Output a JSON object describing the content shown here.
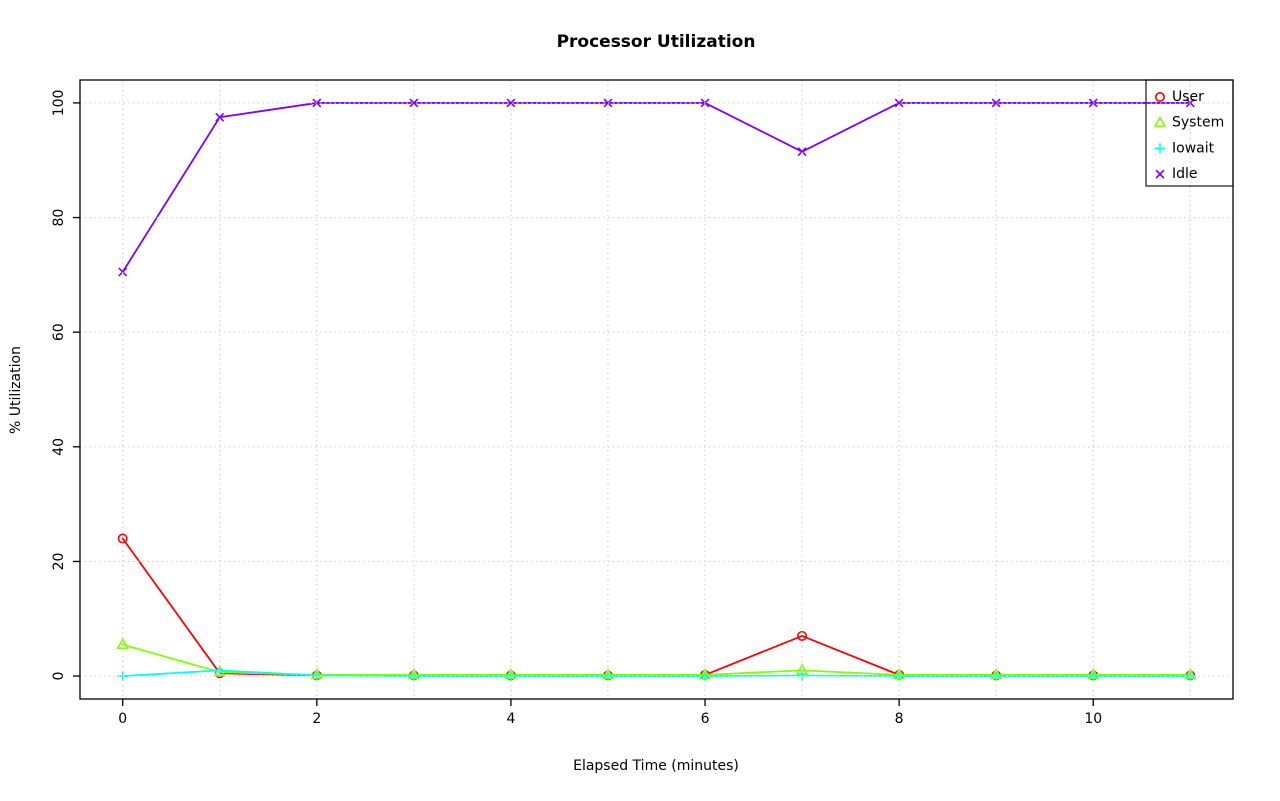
{
  "chart_data": {
    "type": "line",
    "title": "Processor Utilization",
    "xlabel": "Elapsed Time (minutes)",
    "ylabel": "% Utilization",
    "x": [
      0,
      1,
      2,
      3,
      4,
      5,
      6,
      7,
      8,
      9,
      10,
      11
    ],
    "x_ticks": [
      0,
      2,
      4,
      6,
      8,
      10
    ],
    "y_ticks": [
      0,
      20,
      40,
      60,
      80,
      100
    ],
    "xlim": [
      -0.44,
      11.44
    ],
    "ylim": [
      -4,
      104
    ],
    "grid": true,
    "grid_color": "#D3D3D3",
    "axis_color": "#000000",
    "background": "#FFFFFF",
    "legend_position": "topright",
    "series": [
      {
        "name": "User",
        "color": "#FF0000",
        "marker": "circle",
        "values": [
          24,
          0.5,
          0.1,
          0.1,
          0.1,
          0.1,
          0.2,
          7,
          0.2,
          0.1,
          0.1,
          0.1
        ]
      },
      {
        "name": "System",
        "color": "#80FF00",
        "marker": "triangle",
        "values": [
          5.5,
          0.7,
          0.2,
          0.2,
          0.2,
          0.2,
          0.2,
          1,
          0.2,
          0.2,
          0.2,
          0.2
        ]
      },
      {
        "name": "Iowait",
        "color": "#00FFFF",
        "marker": "plus",
        "values": [
          0,
          1,
          0.1,
          0,
          0,
          0,
          0,
          0.1,
          0,
          0,
          0,
          0
        ]
      },
      {
        "name": "Idle",
        "color": "#8000FF",
        "marker": "x",
        "values": [
          70.5,
          97.5,
          100,
          100,
          100,
          100,
          100,
          91.5,
          100,
          100,
          100,
          100
        ]
      }
    ]
  }
}
